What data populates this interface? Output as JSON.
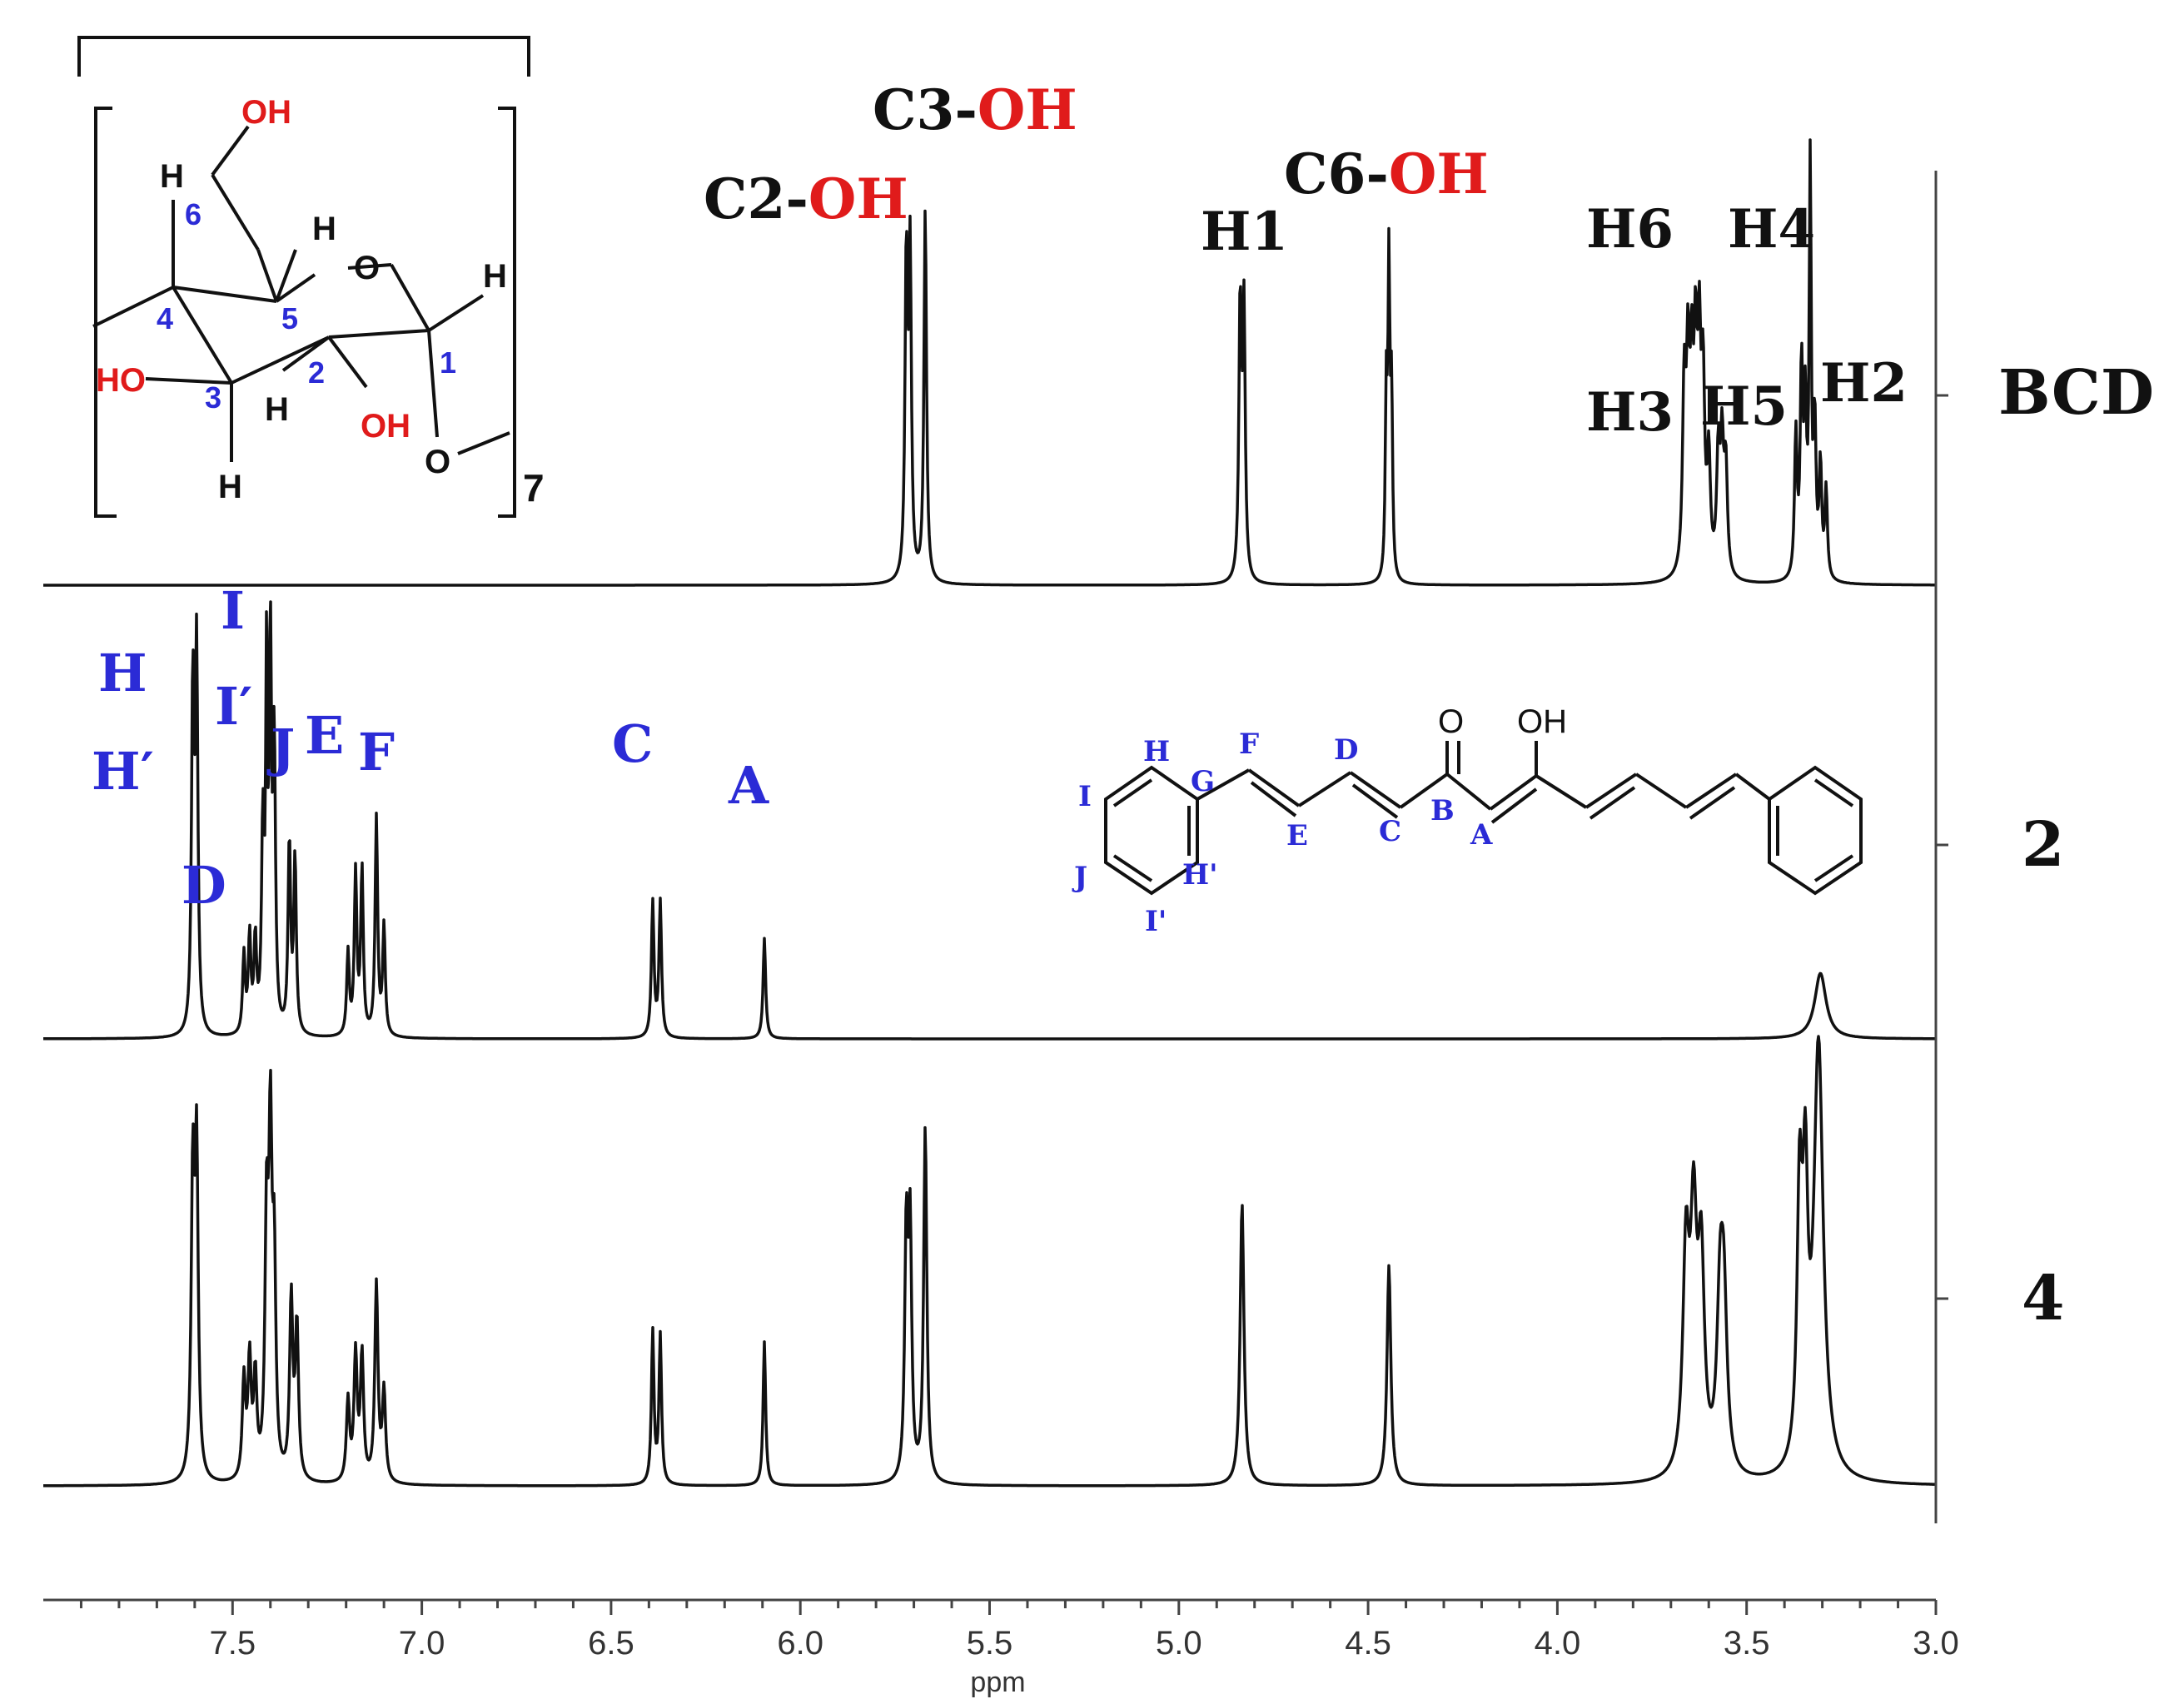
{
  "chart_data": {
    "type": "line",
    "title": "",
    "xlabel": "ppm",
    "ylabel": "",
    "xlim": [
      8.0,
      3.0
    ],
    "x_reversed": true,
    "x_ticks": [
      "7.5",
      "7.0",
      "6.5",
      "6.0",
      "5.5",
      "5.0",
      "4.5",
      "4.0",
      "3.5",
      "3.0"
    ],
    "grid": false,
    "series": [
      {
        "name": "BCD",
        "peaks": [
          {
            "ppm": 5.72,
            "height": 0.72,
            "width": 0.004
          },
          {
            "ppm": 5.71,
            "height": 0.72,
            "width": 0.004
          },
          {
            "ppm": 5.67,
            "height": 0.84,
            "width": 0.004
          },
          {
            "ppm": 4.838,
            "height": 0.62,
            "width": 0.004
          },
          {
            "ppm": 4.828,
            "height": 0.6,
            "width": 0.004
          },
          {
            "ppm": 4.452,
            "height": 0.4,
            "width": 0.003
          },
          {
            "ppm": 4.445,
            "height": 0.68,
            "width": 0.003
          },
          {
            "ppm": 4.438,
            "height": 0.4,
            "width": 0.003
          },
          {
            "ppm": 3.665,
            "height": 0.4,
            "width": 0.005
          },
          {
            "ppm": 3.655,
            "height": 0.43,
            "width": 0.005
          },
          {
            "ppm": 3.645,
            "height": 0.39,
            "width": 0.005
          },
          {
            "ppm": 3.635,
            "height": 0.44,
            "width": 0.005
          },
          {
            "ppm": 3.625,
            "height": 0.46,
            "width": 0.005
          },
          {
            "ppm": 3.615,
            "height": 0.4,
            "width": 0.005
          },
          {
            "ppm": 3.6,
            "height": 0.25,
            "width": 0.005
          },
          {
            "ppm": 3.575,
            "height": 0.26,
            "width": 0.005
          },
          {
            "ppm": 3.565,
            "height": 0.28,
            "width": 0.005
          },
          {
            "ppm": 3.555,
            "height": 0.24,
            "width": 0.005
          },
          {
            "ppm": 3.37,
            "height": 0.32,
            "width": 0.004
          },
          {
            "ppm": 3.355,
            "height": 0.46,
            "width": 0.004
          },
          {
            "ppm": 3.345,
            "height": 0.36,
            "width": 0.004
          },
          {
            "ppm": 3.332,
            "height": 0.97,
            "width": 0.003
          },
          {
            "ppm": 3.32,
            "height": 0.34,
            "width": 0.004
          },
          {
            "ppm": 3.305,
            "height": 0.25,
            "width": 0.004
          },
          {
            "ppm": 3.29,
            "height": 0.2,
            "width": 0.004
          }
        ]
      },
      {
        "name": "2",
        "peaks": [
          {
            "ppm": 7.605,
            "height": 0.79,
            "width": 0.004
          },
          {
            "ppm": 7.595,
            "height": 0.86,
            "width": 0.004
          },
          {
            "ppm": 7.47,
            "height": 0.18,
            "width": 0.004
          },
          {
            "ppm": 7.455,
            "height": 0.22,
            "width": 0.004
          },
          {
            "ppm": 7.44,
            "height": 0.21,
            "width": 0.004
          },
          {
            "ppm": 7.42,
            "height": 0.46,
            "width": 0.004
          },
          {
            "ppm": 7.41,
            "height": 0.82,
            "width": 0.003
          },
          {
            "ppm": 7.4,
            "height": 0.97,
            "width": 0.003
          },
          {
            "ppm": 7.39,
            "height": 0.65,
            "width": 0.004
          },
          {
            "ppm": 7.35,
            "height": 0.44,
            "width": 0.004
          },
          {
            "ppm": 7.335,
            "height": 0.4,
            "width": 0.004
          },
          {
            "ppm": 7.195,
            "height": 0.19,
            "width": 0.004
          },
          {
            "ppm": 7.175,
            "height": 0.37,
            "width": 0.004
          },
          {
            "ppm": 7.158,
            "height": 0.38,
            "width": 0.004
          },
          {
            "ppm": 7.12,
            "height": 0.5,
            "width": 0.004
          },
          {
            "ppm": 7.1,
            "height": 0.25,
            "width": 0.004
          },
          {
            "ppm": 6.39,
            "height": 0.31,
            "width": 0.004
          },
          {
            "ppm": 6.37,
            "height": 0.31,
            "width": 0.004
          },
          {
            "ppm": 6.095,
            "height": 0.23,
            "width": 0.004
          },
          {
            "ppm": 3.305,
            "height": 0.15,
            "width": 0.018
          }
        ]
      },
      {
        "name": "4",
        "peaks": [
          {
            "ppm": 7.605,
            "height": 0.66,
            "width": 0.005
          },
          {
            "ppm": 7.595,
            "height": 0.71,
            "width": 0.005
          },
          {
            "ppm": 7.47,
            "height": 0.22,
            "width": 0.005
          },
          {
            "ppm": 7.455,
            "height": 0.26,
            "width": 0.005
          },
          {
            "ppm": 7.44,
            "height": 0.22,
            "width": 0.005
          },
          {
            "ppm": 7.41,
            "height": 0.55,
            "width": 0.005
          },
          {
            "ppm": 7.4,
            "height": 0.72,
            "width": 0.005
          },
          {
            "ppm": 7.39,
            "height": 0.45,
            "width": 0.005
          },
          {
            "ppm": 7.345,
            "height": 0.4,
            "width": 0.005
          },
          {
            "ppm": 7.33,
            "height": 0.34,
            "width": 0.005
          },
          {
            "ppm": 7.195,
            "height": 0.18,
            "width": 0.005
          },
          {
            "ppm": 7.175,
            "height": 0.28,
            "width": 0.005
          },
          {
            "ppm": 7.158,
            "height": 0.28,
            "width": 0.005
          },
          {
            "ppm": 7.12,
            "height": 0.44,
            "width": 0.005
          },
          {
            "ppm": 7.1,
            "height": 0.2,
            "width": 0.005
          },
          {
            "ppm": 6.39,
            "height": 0.34,
            "width": 0.004
          },
          {
            "ppm": 6.37,
            "height": 0.33,
            "width": 0.004
          },
          {
            "ppm": 6.095,
            "height": 0.32,
            "width": 0.004
          },
          {
            "ppm": 5.72,
            "height": 0.54,
            "width": 0.005
          },
          {
            "ppm": 5.71,
            "height": 0.54,
            "width": 0.005
          },
          {
            "ppm": 5.67,
            "height": 0.79,
            "width": 0.005
          },
          {
            "ppm": 4.833,
            "height": 0.63,
            "width": 0.006
          },
          {
            "ppm": 4.445,
            "height": 0.49,
            "width": 0.006
          },
          {
            "ppm": 3.66,
            "height": 0.48,
            "width": 0.01
          },
          {
            "ppm": 3.64,
            "height": 0.52,
            "width": 0.01
          },
          {
            "ppm": 3.62,
            "height": 0.45,
            "width": 0.01
          },
          {
            "ppm": 3.57,
            "height": 0.35,
            "width": 0.01
          },
          {
            "ppm": 3.56,
            "height": 0.34,
            "width": 0.01
          },
          {
            "ppm": 3.36,
            "height": 0.58,
            "width": 0.008
          },
          {
            "ppm": 3.345,
            "height": 0.56,
            "width": 0.008
          },
          {
            "ppm": 3.31,
            "height": 0.96,
            "width": 0.015
          }
        ]
      }
    ],
    "trace_labels": [
      "BCD",
      "2",
      "4"
    ],
    "annotations_bcd": [
      {
        "prefix": "C2-",
        "suffix": "OH"
      },
      {
        "prefix": "C3-",
        "suffix": "OH"
      },
      {
        "prefix": "C6-",
        "suffix": "OH"
      },
      {
        "prefix": "H1",
        "suffix": ""
      },
      {
        "prefix": "H6",
        "suffix": ""
      },
      {
        "prefix": "H4",
        "suffix": ""
      },
      {
        "prefix": "H3",
        "suffix": ""
      },
      {
        "prefix": "H5",
        "suffix": ""
      },
      {
        "prefix": "H2",
        "suffix": ""
      }
    ],
    "annotations_2": [
      "H",
      "H′",
      "I",
      "I′",
      "J",
      "E",
      "F",
      "D",
      "C",
      "A"
    ],
    "structure_bcd": {
      "hydroxyl": "OH",
      "hydroxyl_left": "HO",
      "ring_oxygen": "O",
      "hydrogen": "H",
      "positions": [
        "6",
        "4",
        "5",
        "2",
        "3",
        "1"
      ],
      "repeat": "7"
    },
    "structure_2": {
      "positions": [
        "H",
        "F",
        "D",
        "G",
        "I",
        "E",
        "C",
        "B",
        "A",
        "H'",
        "J",
        "I'"
      ],
      "carbonyl_o": "O",
      "enol_oh": "OH"
    }
  }
}
